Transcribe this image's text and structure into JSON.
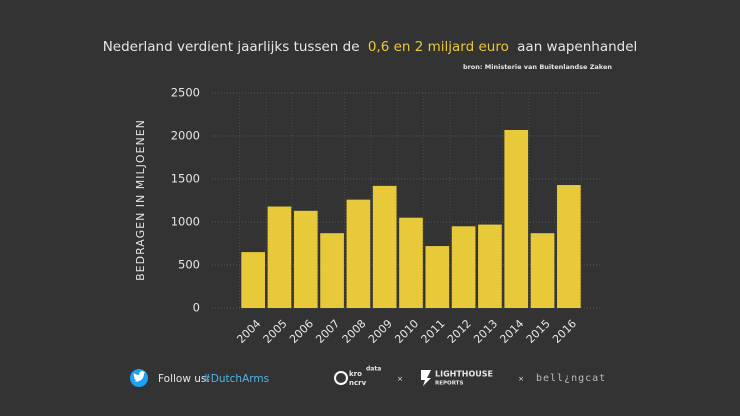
{
  "chart_data": {
    "type": "bar",
    "title": [
      "Nederland verdient jaarlijks tussen de",
      "0,6 en 2 miljard euro",
      "aan wapenhandel"
    ],
    "title_highlight_color": "#e8c93a",
    "source": "bron: Ministerie van Buitenlandse Zaken",
    "y_label": "BEDRAGEN IN MILJOENEN",
    "categories": [
      "2004",
      "2005",
      "2006",
      "2007",
      "2008",
      "2009",
      "2010",
      "2011",
      "2012",
      "2013",
      "2014",
      "2015",
      "2016"
    ],
    "values": [
      650,
      1180,
      1130,
      870,
      1260,
      1420,
      1050,
      720,
      950,
      970,
      2070,
      870,
      1430
    ],
    "color": "#e8c93a",
    "ylim": [
      0,
      2500
    ],
    "yticks": [
      0,
      500,
      1000,
      1500,
      2000,
      2500
    ],
    "grid": true
  },
  "footer": {
    "follow": "Follow us:",
    "hashtag": "#DutchArms",
    "logos": [
      "kro",
      "ncrv",
      "data",
      "LIGHTHOUSE",
      "REPORTS",
      "bell¿ngcat"
    ]
  }
}
